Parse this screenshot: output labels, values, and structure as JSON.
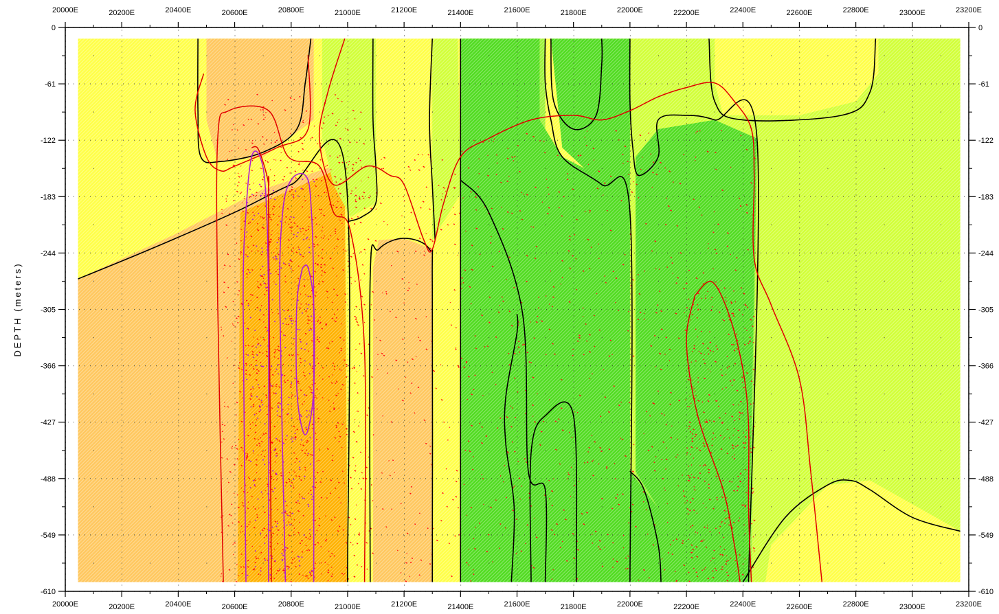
{
  "chart_data": {
    "type": "heatmap",
    "title": "",
    "xlabel": "",
    "ylabel": "DEPTH (meters)",
    "xlim": [
      20000,
      23200
    ],
    "ylim": [
      -610,
      0
    ],
    "x_ticks": [
      "20000E",
      "20200E",
      "20400E",
      "20600E",
      "20800E",
      "21000E",
      "21200E",
      "21400E",
      "21600E",
      "21800E",
      "22000E",
      "22200E",
      "22400E",
      "22600E",
      "22800E",
      "23000E",
      "23200E"
    ],
    "x_tick_values": [
      20000,
      20200,
      20400,
      20600,
      20800,
      21000,
      21200,
      21400,
      21600,
      21800,
      22000,
      22200,
      22400,
      22600,
      22800,
      23000,
      23200
    ],
    "y_ticks": [
      "0",
      "-61",
      "-122",
      "-183",
      "-244",
      "-305",
      "-366",
      "-427",
      "-488",
      "-549",
      "-610"
    ],
    "y_tick_values": [
      0,
      -61,
      -122,
      -183,
      -244,
      -305,
      -366,
      -427,
      -488,
      -549,
      -610
    ],
    "data_extent": {
      "x": [
        20045,
        23170
      ],
      "y": [
        -600,
        -12
      ]
    },
    "grid": "dotted",
    "fill_style": "hatched",
    "colors": {
      "orange_dark": "#ffb200",
      "orange": "#ffc860",
      "yellow": "#ffff4a",
      "yellow_green": "#d2ff3a",
      "light_green": "#9cf238",
      "green": "#52dc22",
      "black_contour": "#000000",
      "red_contour": "#e00000",
      "magenta_contour": "#b020d0",
      "stipple_red": "#ff1010"
    },
    "regions": [
      {
        "color": "yellow",
        "points": [
          [
            20045,
            -12
          ],
          [
            23170,
            -12
          ],
          [
            23170,
            -600
          ],
          [
            20045,
            -600
          ]
        ]
      },
      {
        "color": "orange",
        "points": [
          [
            20045,
            -272
          ],
          [
            20380,
            -225
          ],
          [
            20700,
            -175
          ],
          [
            20950,
            -150
          ],
          [
            20990,
            -600
          ],
          [
            20045,
            -600
          ]
        ]
      },
      {
        "color": "orange_dark",
        "points": [
          [
            20620,
            -200
          ],
          [
            20990,
            -150
          ],
          [
            21000,
            -600
          ],
          [
            20610,
            -600
          ]
        ]
      },
      {
        "color": "orange",
        "points": [
          [
            20500,
            -12
          ],
          [
            20880,
            -12
          ],
          [
            20880,
            -100
          ],
          [
            20700,
            -140
          ],
          [
            20540,
            -145
          ],
          [
            20500,
            -100
          ]
        ]
      },
      {
        "color": "orange",
        "points": [
          [
            21110,
            -230
          ],
          [
            21200,
            -228
          ],
          [
            21300,
            -240
          ],
          [
            21300,
            -600
          ],
          [
            21090,
            -600
          ],
          [
            21090,
            -260
          ]
        ]
      },
      {
        "color": "yellow_green",
        "points": [
          [
            20910,
            -12
          ],
          [
            21100,
            -12
          ],
          [
            21100,
            -190
          ],
          [
            21010,
            -205
          ],
          [
            20950,
            -170
          ],
          [
            20910,
            -120
          ]
        ]
      },
      {
        "color": "yellow_green",
        "points": [
          [
            21300,
            -12
          ],
          [
            21390,
            -12
          ],
          [
            21400,
            -180
          ],
          [
            21300,
            -230
          ]
        ]
      },
      {
        "color": "yellow_green",
        "points": [
          [
            22000,
            -12
          ],
          [
            23170,
            -12
          ],
          [
            23170,
            -545
          ],
          [
            22850,
            -490
          ],
          [
            22700,
            -495
          ],
          [
            22500,
            -560
          ],
          [
            22480,
            -600
          ],
          [
            22000,
            -600
          ]
        ]
      },
      {
        "color": "light_green",
        "points": [
          [
            21400,
            -12
          ],
          [
            21700,
            -12
          ],
          [
            21700,
            -150
          ],
          [
            21400,
            -170
          ]
        ]
      },
      {
        "color": "light_green",
        "points": [
          [
            22020,
            -140
          ],
          [
            22300,
            -100
          ],
          [
            22450,
            -120
          ],
          [
            22430,
            -600
          ],
          [
            22100,
            -600
          ],
          [
            22020,
            -560
          ]
        ]
      },
      {
        "color": "green",
        "points": [
          [
            21400,
            -12
          ],
          [
            21680,
            -12
          ],
          [
            21680,
            -100
          ],
          [
            21760,
            -140
          ],
          [
            21950,
            -170
          ],
          [
            22000,
            -200
          ],
          [
            22000,
            -480
          ],
          [
            22100,
            -520
          ],
          [
            22100,
            -600
          ],
          [
            21400,
            -600
          ]
        ]
      },
      {
        "color": "green",
        "points": [
          [
            21720,
            -12
          ],
          [
            22000,
            -12
          ],
          [
            22000,
            -200
          ],
          [
            21900,
            -170
          ],
          [
            21760,
            -130
          ]
        ]
      },
      {
        "color": "green",
        "points": [
          [
            22020,
            -140
          ],
          [
            22100,
            -110
          ],
          [
            22300,
            -100
          ],
          [
            22450,
            -120
          ],
          [
            22420,
            -600
          ],
          [
            22100,
            -600
          ],
          [
            22100,
            -520
          ],
          [
            22020,
            -480
          ]
        ]
      },
      {
        "color": "yellow",
        "points": [
          [
            22300,
            -12
          ],
          [
            22880,
            -12
          ],
          [
            22880,
            -50
          ],
          [
            22800,
            -80
          ],
          [
            22600,
            -95
          ],
          [
            22330,
            -95
          ],
          [
            22300,
            -60
          ]
        ]
      },
      {
        "color": "yellow",
        "points": [
          [
            22500,
            -560
          ],
          [
            22700,
            -495
          ],
          [
            22850,
            -490
          ],
          [
            23170,
            -545
          ],
          [
            23170,
            -600
          ],
          [
            22480,
            -600
          ]
        ]
      }
    ],
    "black_contours": [
      [
        [
          20470,
          -12
        ],
        [
          20470,
          -90
        ],
        [
          20480,
          -140
        ],
        [
          20550,
          -145
        ],
        [
          20700,
          -135
        ],
        [
          20820,
          -110
        ],
        [
          20850,
          -60
        ],
        [
          20870,
          -12
        ]
      ],
      [
        [
          20045,
          -272
        ],
        [
          20300,
          -240
        ],
        [
          20600,
          -200
        ],
        [
          20800,
          -170
        ],
        [
          20990,
          -150
        ],
        [
          21000,
          -600
        ]
      ],
      [
        [
          21090,
          -12
        ],
        [
          21090,
          -100
        ],
        [
          21100,
          -150
        ],
        [
          21100,
          -190
        ],
        [
          21050,
          -205
        ],
        [
          21000,
          -210
        ]
      ],
      [
        [
          21080,
          -600
        ],
        [
          21080,
          -270
        ],
        [
          21110,
          -240
        ],
        [
          21200,
          -228
        ],
        [
          21290,
          -240
        ],
        [
          21300,
          -280
        ],
        [
          21300,
          -600
        ]
      ],
      [
        [
          21300,
          -12
        ],
        [
          21290,
          -100
        ],
        [
          21300,
          -170
        ],
        [
          21310,
          -230
        ]
      ],
      [
        [
          21400,
          -12
        ],
        [
          21400,
          -600
        ]
      ],
      [
        [
          21400,
          -165
        ],
        [
          21500,
          -200
        ],
        [
          21620,
          -310
        ],
        [
          21640,
          -480
        ],
        [
          21700,
          -500
        ],
        [
          21700,
          -600
        ]
      ],
      [
        [
          21580,
          -600
        ],
        [
          21590,
          -520
        ],
        [
          21560,
          -450
        ],
        [
          21560,
          -400
        ],
        [
          21600,
          -330
        ],
        [
          21600,
          -310
        ]
      ],
      [
        [
          21650,
          -600
        ],
        [
          21650,
          -460
        ],
        [
          21700,
          -420
        ],
        [
          21800,
          -420
        ],
        [
          21810,
          -600
        ]
      ],
      [
        [
          21700,
          -12
        ],
        [
          21700,
          -60
        ],
        [
          21720,
          -100
        ],
        [
          21760,
          -140
        ],
        [
          21900,
          -170
        ],
        [
          22000,
          -200
        ],
        [
          22000,
          -600
        ]
      ],
      [
        [
          21720,
          -12
        ],
        [
          21730,
          -80
        ],
        [
          21800,
          -110
        ],
        [
          21880,
          -95
        ],
        [
          21900,
          -40
        ],
        [
          21900,
          -12
        ]
      ],
      [
        [
          22000,
          -12
        ],
        [
          22000,
          -80
        ],
        [
          22010,
          -130
        ],
        [
          22030,
          -160
        ],
        [
          22100,
          -140
        ],
        [
          22100,
          -100
        ],
        [
          22200,
          -95
        ],
        [
          22300,
          -100
        ],
        [
          22450,
          -120
        ],
        [
          22420,
          -600
        ]
      ],
      [
        [
          22000,
          -480
        ],
        [
          22050,
          -500
        ],
        [
          22100,
          -560
        ],
        [
          22110,
          -600
        ]
      ],
      [
        [
          22280,
          -12
        ],
        [
          22300,
          -80
        ],
        [
          22400,
          -100
        ],
        [
          22750,
          -95
        ],
        [
          22850,
          -70
        ],
        [
          22870,
          -12
        ]
      ],
      [
        [
          22400,
          -600
        ],
        [
          22550,
          -530
        ],
        [
          22700,
          -495
        ],
        [
          22780,
          -490
        ],
        [
          22850,
          -500
        ],
        [
          23000,
          -530
        ],
        [
          23170,
          -545
        ]
      ]
    ],
    "red_contours": [
      [
        [
          20490,
          -50
        ],
        [
          20460,
          -90
        ],
        [
          20500,
          -140
        ],
        [
          20550,
          -155
        ],
        [
          20600,
          -150
        ],
        [
          20750,
          -130
        ],
        [
          20860,
          -110
        ],
        [
          20860,
          -30
        ]
      ],
      [
        [
          20560,
          -600
        ],
        [
          20540,
          -300
        ],
        [
          20540,
          -120
        ],
        [
          20580,
          -90
        ],
        [
          20720,
          -90
        ],
        [
          20790,
          -140
        ],
        [
          20900,
          -150
        ],
        [
          20950,
          -200
        ],
        [
          21010,
          -220
        ],
        [
          21060,
          -350
        ],
        [
          21060,
          -600
        ]
      ],
      [
        [
          20990,
          -12
        ],
        [
          20930,
          -70
        ],
        [
          20900,
          -120
        ],
        [
          20950,
          -170
        ],
        [
          21070,
          -150
        ],
        [
          21150,
          -160
        ],
        [
          21200,
          -170
        ],
        [
          21270,
          -230
        ],
        [
          21300,
          -240
        ],
        [
          21340,
          -190
        ],
        [
          21400,
          -140
        ],
        [
          21500,
          -120
        ],
        [
          21650,
          -100
        ],
        [
          21800,
          -95
        ],
        [
          21900,
          -100
        ],
        [
          22000,
          -90
        ],
        [
          22100,
          -75
        ],
        [
          22200,
          -65
        ],
        [
          22300,
          -60
        ],
        [
          22370,
          -80
        ],
        [
          22430,
          -110
        ],
        [
          22440,
          -160
        ],
        [
          22440,
          -250
        ],
        [
          22500,
          -300
        ],
        [
          22600,
          -380
        ],
        [
          22640,
          -480
        ],
        [
          22680,
          -600
        ]
      ],
      [
        [
          22230,
          -290
        ],
        [
          22290,
          -275
        ],
        [
          22350,
          -310
        ],
        [
          22400,
          -370
        ],
        [
          22420,
          -430
        ],
        [
          22420,
          -520
        ],
        [
          22430,
          -600
        ]
      ],
      [
        [
          22230,
          -290
        ],
        [
          22200,
          -340
        ],
        [
          22240,
          -420
        ],
        [
          22330,
          -500
        ],
        [
          22370,
          -560
        ],
        [
          22390,
          -600
        ]
      ],
      [
        [
          20660,
          -130
        ],
        [
          20680,
          -130
        ],
        [
          20700,
          -145
        ],
        [
          20720,
          -170
        ],
        [
          20720,
          -200
        ],
        [
          20730,
          -600
        ]
      ]
    ],
    "magenta_contours": [
      [
        [
          20640,
          -600
        ],
        [
          20630,
          -300
        ],
        [
          20640,
          -200
        ],
        [
          20660,
          -140
        ],
        [
          20690,
          -140
        ],
        [
          20710,
          -180
        ],
        [
          20720,
          -300
        ],
        [
          20720,
          -600
        ]
      ],
      [
        [
          20780,
          -600
        ],
        [
          20760,
          -300
        ],
        [
          20770,
          -200
        ],
        [
          20800,
          -165
        ],
        [
          20850,
          -160
        ],
        [
          20870,
          -190
        ],
        [
          20880,
          -300
        ],
        [
          20880,
          -600
        ]
      ],
      [
        [
          20840,
          -260
        ],
        [
          20860,
          -260
        ],
        [
          20880,
          -300
        ],
        [
          20880,
          -390
        ],
        [
          20860,
          -435
        ],
        [
          20840,
          -435
        ],
        [
          20820,
          -390
        ],
        [
          20820,
          -300
        ],
        [
          20840,
          -260
        ]
      ]
    ],
    "stipple_areas": [
      {
        "x": [
          20550,
          21060
        ],
        "y": [
          -600,
          -70
        ],
        "count": 700
      },
      {
        "x": [
          20900,
          21400
        ],
        "y": [
          -600,
          -130
        ],
        "count": 250
      },
      {
        "x": [
          21400,
          22440
        ],
        "y": [
          -600,
          -110
        ],
        "count": 700
      },
      {
        "x": [
          22200,
          22440
        ],
        "y": [
          -600,
          -280
        ],
        "count": 260
      },
      {
        "x": [
          20620,
          20900
        ],
        "y": [
          -600,
          -150
        ],
        "count": 400
      }
    ]
  }
}
